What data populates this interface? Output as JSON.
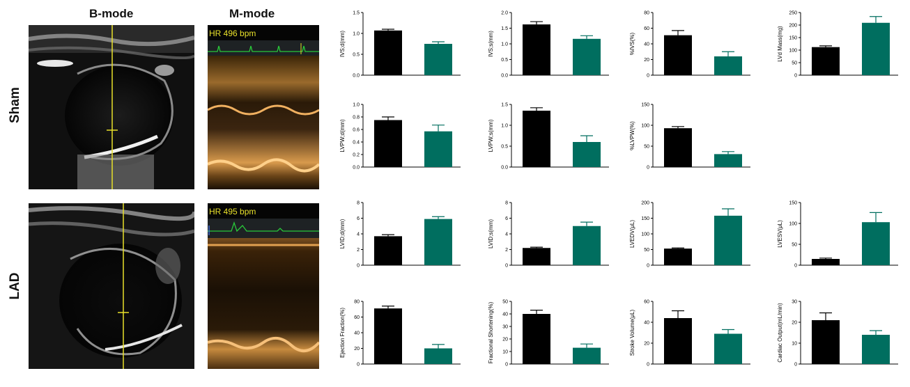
{
  "headers": {
    "bmode": "B-mode",
    "mmode": "M-mode"
  },
  "rows": {
    "sham": "Sham",
    "lad": "LAD"
  },
  "hr": {
    "sham": "HR 496 bpm",
    "lad": "HR 495 bpm"
  },
  "colors": {
    "sham": "#000000",
    "lad": "#006e5f",
    "trace": "#29c93a",
    "marker": "#e8e02a"
  },
  "chart_data": [
    {
      "type": "bar",
      "ylabel": "IVS;d(mm)",
      "ylim": [
        0,
        1.5
      ],
      "ticks": [
        "0.0",
        "0.5",
        "1.0",
        "1.5"
      ],
      "series": [
        {
          "values": [
            1.07,
            0.75
          ],
          "errors": [
            0.03,
            0.05
          ]
        }
      ]
    },
    {
      "type": "bar",
      "ylabel": "IVS;s(mm)",
      "ylim": [
        0,
        2.0
      ],
      "ticks": [
        "0.0",
        "0.5",
        "1.0",
        "1.5",
        "2.0"
      ],
      "series": [
        {
          "values": [
            1.62,
            1.16
          ],
          "errors": [
            0.09,
            0.1
          ]
        }
      ]
    },
    {
      "type": "bar",
      "ylabel": "%IVS(%)",
      "ylim": [
        0,
        80
      ],
      "ticks": [
        "0",
        "20",
        "40",
        "60",
        "80"
      ],
      "series": [
        {
          "values": [
            51,
            24
          ],
          "errors": [
            6,
            6
          ]
        }
      ]
    },
    {
      "type": "bar",
      "ylabel": "LVd Mass(mg)",
      "ylim": [
        0,
        250
      ],
      "ticks": [
        "0",
        "50",
        "100",
        "150",
        "200",
        "250"
      ],
      "series": [
        {
          "values": [
            112,
            209
          ],
          "errors": [
            5,
            25
          ]
        }
      ]
    },
    {
      "type": "bar",
      "ylabel": "LVPW;d(mm)",
      "ylim": [
        0,
        1.0
      ],
      "ticks": [
        "0.0",
        "0.2",
        "0.4",
        "0.6",
        "0.8",
        "1.0"
      ],
      "series": [
        {
          "values": [
            0.75,
            0.57
          ],
          "errors": [
            0.05,
            0.1
          ]
        }
      ]
    },
    {
      "type": "bar",
      "ylabel": "LVPW;s(mm)",
      "ylim": [
        0,
        1.5
      ],
      "ticks": [
        "0.0",
        "0.5",
        "1.0",
        "1.5"
      ],
      "series": [
        {
          "values": [
            1.35,
            0.6
          ],
          "errors": [
            0.07,
            0.15
          ]
        }
      ]
    },
    {
      "type": "bar",
      "ylabel": "%LVPW(%)",
      "ylim": [
        0,
        150
      ],
      "ticks": [
        "0",
        "50",
        "100",
        "150"
      ],
      "series": [
        {
          "values": [
            93,
            31
          ],
          "errors": [
            4,
            6
          ]
        }
      ]
    },
    {
      "type": "bar",
      "ylabel": "LVID;d(mm)",
      "ylim": [
        0,
        8
      ],
      "ticks": [
        "0",
        "2",
        "4",
        "6",
        "8"
      ],
      "series": [
        {
          "values": [
            3.7,
            5.9
          ],
          "errors": [
            0.2,
            0.3
          ]
        }
      ]
    },
    {
      "type": "bar",
      "ylabel": "LVID;s(mm)",
      "ylim": [
        0,
        8
      ],
      "ticks": [
        "0",
        "2",
        "4",
        "6",
        "8"
      ],
      "series": [
        {
          "values": [
            2.2,
            5.0
          ],
          "errors": [
            0.1,
            0.5
          ]
        }
      ]
    },
    {
      "type": "bar",
      "ylabel": "LVEDV(μL)",
      "ylim": [
        0,
        200
      ],
      "ticks": [
        "0",
        "50",
        "100",
        "150",
        "200"
      ],
      "series": [
        {
          "values": [
            53,
            158
          ],
          "errors": [
            2,
            22
          ]
        }
      ]
    },
    {
      "type": "bar",
      "ylabel": "LVESV(μL)",
      "ylim": [
        0,
        150
      ],
      "ticks": [
        "0",
        "50",
        "100",
        "150"
      ],
      "series": [
        {
          "values": [
            15,
            103
          ],
          "errors": [
            2,
            23
          ]
        }
      ]
    },
    {
      "type": "bar",
      "ylabel": "Ejection Fraction(%)",
      "ylim": [
        0,
        80
      ],
      "ticks": [
        "0",
        "20",
        "40",
        "60",
        "80"
      ],
      "series": [
        {
          "values": [
            71,
            20
          ],
          "errors": [
            3,
            5
          ]
        }
      ]
    },
    {
      "type": "bar",
      "ylabel": "Fractional Shortening(%)",
      "ylim": [
        0,
        50
      ],
      "ticks": [
        "0",
        "10",
        "20",
        "30",
        "40",
        "50"
      ],
      "series": [
        {
          "values": [
            40,
            13
          ],
          "errors": [
            3,
            3
          ]
        }
      ]
    },
    {
      "type": "bar",
      "ylabel": "Stroke Volume(μL)",
      "ylim": [
        0,
        60
      ],
      "ticks": [
        "0",
        "20",
        "40",
        "60"
      ],
      "series": [
        {
          "values": [
            44,
            29
          ],
          "errors": [
            7,
            4
          ]
        }
      ]
    },
    {
      "type": "bar",
      "ylabel": "Cardiac Output(mL/min)",
      "ylim": [
        0,
        30
      ],
      "ticks": [
        "0",
        "10",
        "20",
        "30"
      ],
      "series": [
        {
          "values": [
            21,
            14
          ],
          "errors": [
            3.5,
            2
          ]
        }
      ]
    }
  ]
}
